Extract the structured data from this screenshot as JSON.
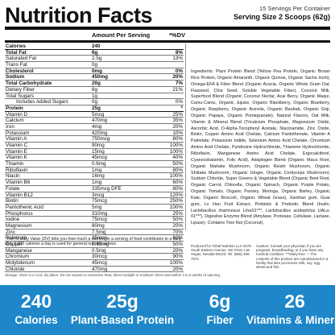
{
  "header": {
    "title": "Nutrition Facts",
    "servings": "15 Servings Per Container",
    "serving_size": "Serving Size 2 Scoops (62g)"
  },
  "columns": {
    "amount_per_serving": "Amount Per Serving",
    "dv": "*%DV"
  },
  "nutrients": [
    {
      "name": "Calories",
      "amount": "240",
      "dv": "",
      "style": "bold thick"
    },
    {
      "name": "Total Fat",
      "amount": "6g",
      "dv": "8%",
      "style": "bold"
    },
    {
      "name": "Saturated Fat",
      "amount": "2.5g",
      "dv": "13%",
      "style": ""
    },
    {
      "name": "Trans Fat",
      "amount": "0g",
      "dv": "",
      "style": ""
    },
    {
      "name": "Cholesterol",
      "amount": "0mg",
      "dv": "0%",
      "style": "bold"
    },
    {
      "name": "Sodium",
      "amount": "450mg",
      "dv": "20%",
      "style": "bold"
    },
    {
      "name": "Total Carbohydrate",
      "amount": "20g",
      "dv": "7%",
      "style": "bold"
    },
    {
      "name": "Dietary Fiber",
      "amount": "6g",
      "dv": "21%",
      "style": ""
    },
    {
      "name": "Total Sugars",
      "amount": "1g",
      "dv": "",
      "style": ""
    },
    {
      "name": "Includes Added Sugars",
      "amount": "0g",
      "dv": "0%",
      "style": "indent"
    },
    {
      "name": "Protein",
      "amount": "25g",
      "dv": "*",
      "style": "bold thick"
    },
    {
      "name": "Vitamin D",
      "amount": "5mcg",
      "dv": "25%",
      "style": ""
    },
    {
      "name": "Calcium",
      "amount": "470mg",
      "dv": "35%",
      "style": ""
    },
    {
      "name": "Iron",
      "amount": "4mg",
      "dv": "20%",
      "style": ""
    },
    {
      "name": "Potassium",
      "amount": "420mg",
      "dv": "10%",
      "style": ""
    },
    {
      "name": "Vitamin A",
      "amount": "750mcg",
      "dv": "80%",
      "style": ""
    },
    {
      "name": "Vitamin C",
      "amount": "90mg",
      "dv": "100%",
      "style": ""
    },
    {
      "name": "Vitamin E",
      "amount": "15mg",
      "dv": "100%",
      "style": ""
    },
    {
      "name": "Vitamin K",
      "amount": "45mcg",
      "dv": "40%",
      "style": ""
    },
    {
      "name": "Thiamin",
      "amount": "0.6mg",
      "dv": "50%",
      "style": ""
    },
    {
      "name": "Riboflavin",
      "amount": "1mg",
      "dv": "80%",
      "style": ""
    },
    {
      "name": "Niacin",
      "amount": "16mg",
      "dv": "100%",
      "style": ""
    },
    {
      "name": "Vitamin B6",
      "amount": "1mg",
      "dv": "60%",
      "style": ""
    },
    {
      "name": "Folate",
      "amount": "335mcg DFE",
      "dv": "80%",
      "style": ""
    },
    {
      "name": "Vitamin B12",
      "amount": "3mcg",
      "dv": "120%",
      "style": ""
    },
    {
      "name": "Biotin",
      "amount": "75mcg",
      "dv": "250%",
      "style": ""
    },
    {
      "name": "Pantothenic Acid",
      "amount": "5mg",
      "dv": "100%",
      "style": ""
    },
    {
      "name": "Phosphorus",
      "amount": "310mg",
      "dv": "25%",
      "style": ""
    },
    {
      "name": "Iodine",
      "amount": "75mcg",
      "dv": "50%",
      "style": ""
    },
    {
      "name": "Magnesium",
      "amount": "80mg",
      "dv": "20%",
      "style": ""
    },
    {
      "name": "Zinc",
      "amount": "7.5mg",
      "dv": "70%",
      "style": ""
    },
    {
      "name": "Selenium",
      "amount": "35mcg",
      "dv": "60%",
      "style": ""
    },
    {
      "name": "Copper",
      "amount": "0.45mg",
      "dv": "50%",
      "style": ""
    },
    {
      "name": "Manganese",
      "amount": "0.5mg",
      "dv": "20%",
      "style": ""
    },
    {
      "name": "Chromium",
      "amount": "30mcg",
      "dv": "90%",
      "style": ""
    },
    {
      "name": "Molybdenum",
      "amount": "45mcg",
      "dv": "100%",
      "style": ""
    },
    {
      "name": "Chloride",
      "amount": "470mg",
      "dv": "20%",
      "style": ""
    }
  ],
  "ingredients": "Ingredients: Plant Protein Blend (Yellow Pea Protein, Organic Brown Rice Protein, Organic Amaranth, Organic Quinoa, Organic Sacha Inchi), Omega-EFA & Fiber Blend (Organic Acacia, Organic Whole Grain Oat, Flaxseed, Chia Seed, Soluble Vegetable Fiber), Coconut Milk, Superfood Blend (Organic Coconut Nectar, Acai Berry, Organic Maqui, Camu-Camu, Organic Jujube, Organic Blackberry, Organic Blueberry, Organic Raspberry, Organic Acerola, Organic Baobab, Organic Goji, Organic Papaya, Organic Pomegranate), Natural Flavors, Oat Milk, Vitamin & Mineral Blend (Tricalcium Phosphate, Magnesium Oxide, Ascorbic Acid, D-Alpha-Tocopheryl Acetate, Niacinamide, Zinc Oxide, Biotin, Copper Amino Acid Chelate, Calcium Pantothenate, Vitamin A Palmitate, Potassium Iodide, Selenium Amino Acid Chelate, Chromium Amino Acid Chelate, Pyridoxine Hydrochloride, Thiamine Hydrochloride, Riboflavin, Manganese Amino Acid Chelate, Ergocalciferol, Cyanocobalamin, Folic Acid), Adaptogen Blend (Organic Maca Root, Organic Maitake Mushroom, Organic Reishi Mushroom, Organic Shiitake Mushroom, Organic Ginger, Organic Cordyceps Mushroom), Sodium Chloride, Super Greens & Vegetable Blend (Organic Beet Root, Organic Carrot, Chlorella, Organic Spinach, Organic Purple Potato, Organic Tomato, Organic Parsley, Moringa, Organic Barley, Organic Kale, Organic Broccoli, Organic Wheat Grass), Xanthan gum, Guar gum, Lo Han Fruit Extract, Prebiotic & Prebiotic Blend (Inulin, Lactobacillus rhamnosus LrhaS1***, Lactobacillus acidophilus UALa-01***), Digestive Enzyme Blend (Amylase, Protease, Cellulase, Lactase, Lipase). Contains Tree Nut (Coconut).",
  "footnote": "*The % Daily Value (DV) tells you how much a nutrient in a serving of food contributes to a daily diet. 2,000 calories a day is used for general nutrition advice.",
  "manufacturer": "Produced for Tribal Nutrition LLC 8275 South Eastern Avenue, Ste #315, Las Vegas, Nevada 89123. Tel: (855) 468-7574",
  "caution": "Caution: Consult your physician if you are pregnant, breastfeeding, or if you have any medical condition. ***Dairy-free — The contents of this product are manufactured in a facility that also processes milk, soy, egg, wheat and fish.",
  "storage": "Storage: Store in a cool, dry place. Do not expose to excessive heat, direct sunlight or moisture. Best used within 4 to 5 weeks of opening.",
  "banner": {
    "color": "#1d87c9",
    "stats": [
      {
        "value": "240",
        "label": "Calories"
      },
      {
        "value": "25g",
        "label": "Plant-Based Protein"
      },
      {
        "value": "6g",
        "label": "Fiber"
      },
      {
        "value": "26",
        "label": "Vitamins & Minerals"
      }
    ]
  }
}
